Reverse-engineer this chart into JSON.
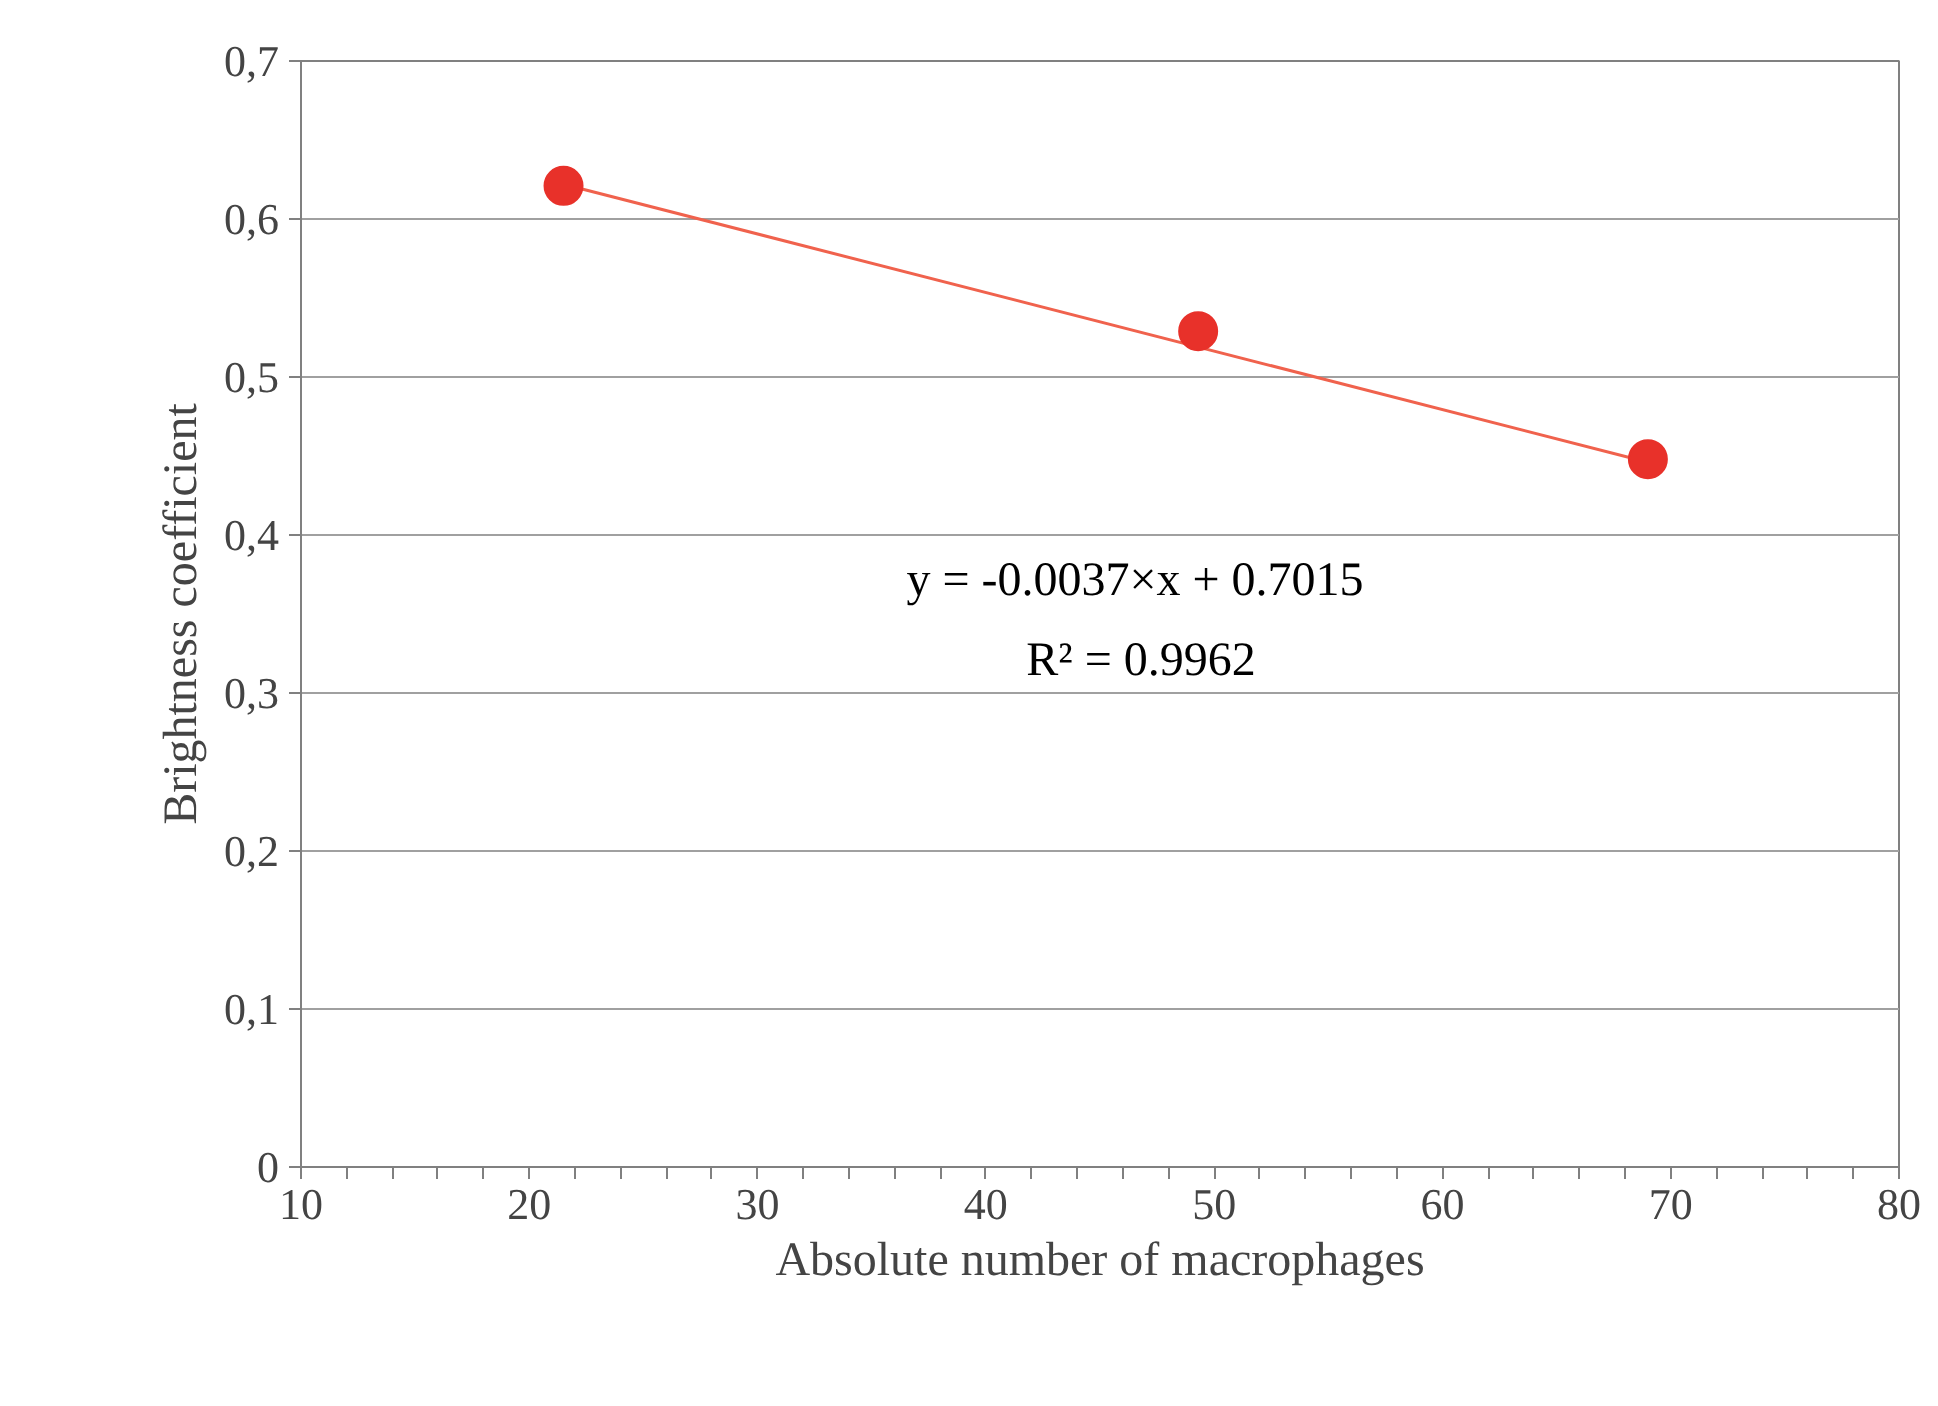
{
  "chart_data": {
    "type": "scatter",
    "xlabel": "Absolute number of macrophages",
    "ylabel": "Brightness coefficient",
    "x": [
      21.5,
      49.3,
      69.0
    ],
    "series": [
      {
        "color": "#e8312a",
        "values": [
          0.621,
          0.529,
          0.448
        ],
        "marker": "circle"
      },
      {
        "type": "line",
        "color": "#f0624d",
        "x": [
          21.5,
          69.0
        ],
        "values": [
          0.622,
          0.446
        ],
        "line_style": "solid"
      }
    ],
    "annotations": [
      "y = -0.0037×x  + 0.7015",
      "R² = 0.9962"
    ],
    "xlim": [
      10,
      80
    ],
    "ylim": [
      0,
      0.7
    ],
    "xticks": [
      10,
      {
        "value": 12,
        "label": null
      },
      {
        "value": 14,
        "label": null
      },
      {
        "value": 16,
        "label": null
      },
      {
        "value": 18,
        "label": null
      },
      20,
      {
        "value": 22,
        "label": null
      },
      {
        "value": 24,
        "label": null
      },
      {
        "value": 26,
        "label": null
      },
      {
        "value": 28,
        "label": null
      },
      30,
      {
        "value": 32,
        "label": null
      },
      {
        "value": 34,
        "label": null
      },
      {
        "value": 36,
        "label": null
      },
      {
        "value": 38,
        "label": null
      },
      40,
      {
        "value": 42,
        "label": null
      },
      {
        "value": 44,
        "label": null
      },
      {
        "value": 46,
        "label": null
      },
      {
        "value": 48,
        "label": null
      },
      50,
      {
        "value": 52,
        "label": null
      },
      {
        "value": 54,
        "label": null
      },
      {
        "value": 56,
        "label": null
      },
      {
        "value": 58,
        "label": null
      },
      60,
      {
        "value": 62,
        "label": null
      },
      {
        "value": 64,
        "label": null
      },
      {
        "value": 66,
        "label": null
      },
      {
        "value": 68,
        "label": null
      },
      70,
      {
        "value": 72,
        "label": null
      },
      {
        "value": 74,
        "label": null
      },
      {
        "value": 76,
        "label": null
      },
      {
        "value": 78,
        "label": null
      },
      80
    ],
    "yticks": [
      0,
      {
        "value": 0.1,
        "label": "0,1"
      },
      {
        "value": 0.2,
        "label": "0,2"
      },
      {
        "value": 0.3,
        "label": "0,3"
      },
      {
        "value": 0.4,
        "label": "0,4"
      },
      {
        "value": 0.5,
        "label": "0,5"
      },
      {
        "value": 0.6,
        "label": "0,6"
      },
      {
        "value": 0.7,
        "label": "0,7"
      }
    ],
    "grid": "y"
  }
}
